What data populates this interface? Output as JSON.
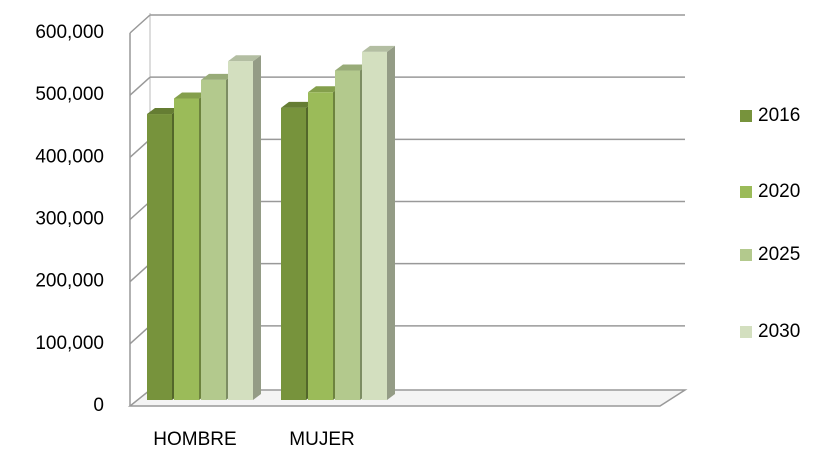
{
  "chart_data": {
    "type": "bar3d",
    "categories": [
      "HOMBRE",
      "MUJER"
    ],
    "series": [
      {
        "name": "2016",
        "color": "#77933c",
        "values": [
          460000,
          470000
        ]
      },
      {
        "name": "2020",
        "color": "#9bbb59",
        "values": [
          485000,
          495000
        ]
      },
      {
        "name": "2025",
        "color": "#b3c98d",
        "values": [
          515000,
          530000
        ]
      },
      {
        "name": "2030",
        "color": "#d3dfbf",
        "values": [
          545000,
          560000
        ]
      }
    ],
    "ylim": [
      0,
      600000
    ],
    "yticks": [
      0,
      {
        "value": 100000,
        "label": "100,000"
      },
      {
        "value": 200000,
        "label": "200,000"
      },
      {
        "value": 300000,
        "label": "300,000"
      },
      {
        "value": 400000,
        "label": "400,000"
      },
      {
        "value": 500000,
        "label": "500,000"
      },
      {
        "value": 600000,
        "label": "600,000"
      }
    ],
    "grid": true,
    "legend": "right"
  }
}
